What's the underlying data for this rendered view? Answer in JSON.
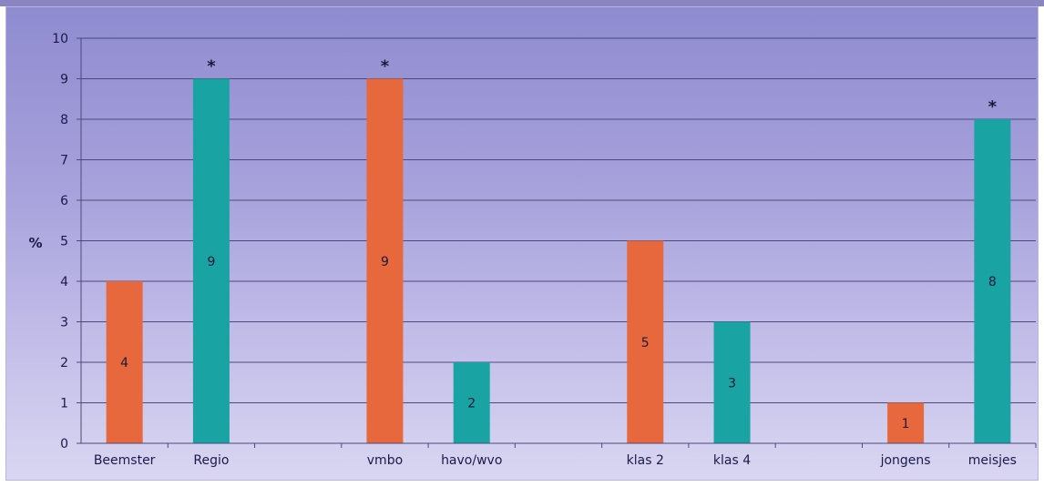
{
  "chart_data": {
    "type": "bar",
    "title": "",
    "xlabel": "",
    "ylabel": "%",
    "ylim": [
      0,
      10
    ],
    "yticks": [
      0,
      1,
      2,
      3,
      4,
      5,
      6,
      7,
      8,
      9,
      10
    ],
    "grid": true,
    "categories": [
      "Beemster",
      "Regio",
      "",
      "vmbo",
      "havo/wvo",
      "",
      "klas 2",
      "klas 4",
      "",
      "jongens",
      "meisjes"
    ],
    "values": [
      4,
      9,
      null,
      9,
      2,
      null,
      5,
      3,
      null,
      1,
      8
    ],
    "data_labels": [
      "4",
      "9",
      "",
      "9",
      "2",
      "",
      "5",
      "3",
      "",
      "1",
      "8"
    ],
    "significance_markers": [
      "",
      "*",
      "",
      "*",
      "",
      "",
      "",
      "",
      "",
      "",
      "*"
    ],
    "bar_colors": [
      "#e8683e",
      "#1aa3a3",
      "",
      "#e8683e",
      "#1aa3a3",
      "",
      "#e8683e",
      "#1aa3a3",
      "",
      "#e8683e",
      "#1aa3a3"
    ]
  },
  "colors": {
    "orange": "#e8683e",
    "teal": "#1aa3a3",
    "gridline": "#4a4a7a"
  }
}
